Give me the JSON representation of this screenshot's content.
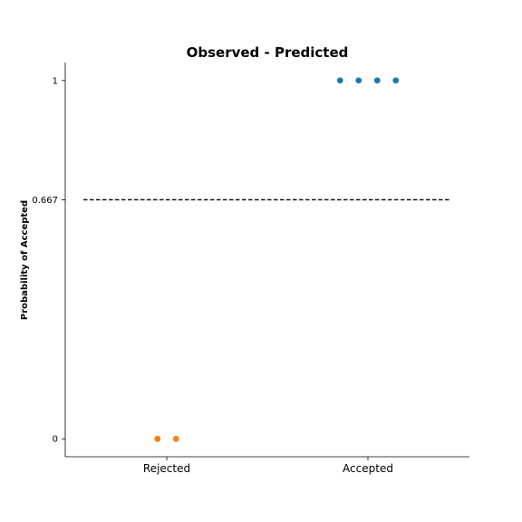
{
  "chart_data": {
    "type": "scatter",
    "title": "Observed - Predicted",
    "xlabel": "",
    "ylabel": "Probability of Accepted",
    "categories": [
      "Rejected",
      "Accepted"
    ],
    "ylim": [
      -0.05,
      1.05
    ],
    "yticks": [
      {
        "value": 0,
        "label": "0"
      },
      {
        "value": 0.667,
        "label": "0.667"
      },
      {
        "value": 1,
        "label": "1"
      }
    ],
    "grid": false,
    "reference_line": {
      "value": 0.667,
      "style": "dashed",
      "color": "#000000"
    },
    "series": [
      {
        "category": "Rejected",
        "color": "#ff7f0e",
        "values": [
          0,
          0
        ]
      },
      {
        "category": "Accepted",
        "color": "#1f77b4",
        "values": [
          1,
          1,
          1,
          1
        ]
      }
    ]
  }
}
